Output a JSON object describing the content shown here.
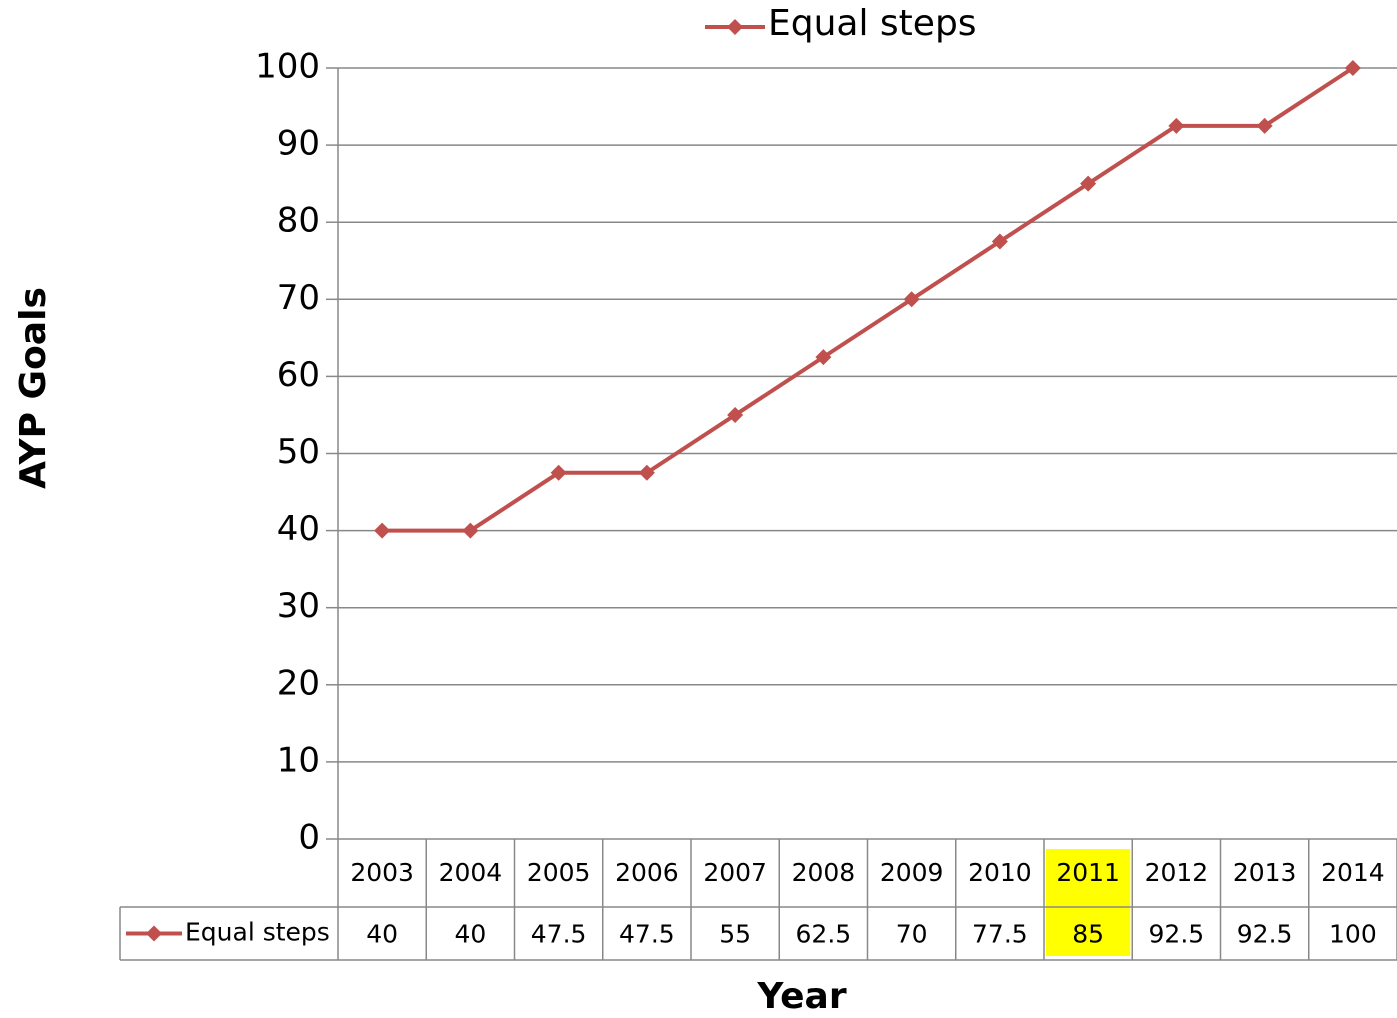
{
  "chart_data": {
    "type": "line",
    "categories": [
      "2003",
      "2004",
      "2005",
      "2006",
      "2007",
      "2008",
      "2009",
      "2010",
      "2011",
      "2012",
      "2013",
      "2014"
    ],
    "series": [
      {
        "name": "Equal steps",
        "color": "#c0504d",
        "values": [
          40,
          40,
          47.5,
          47.5,
          55,
          62.5,
          70,
          77.5,
          85,
          92.5,
          92.5,
          100
        ]
      }
    ],
    "ylabel": "AYP Goals",
    "xlabel": "Year",
    "ylim": [
      0,
      100
    ],
    "yticks": [
      0,
      10,
      20,
      30,
      40,
      50,
      60,
      70,
      80,
      90,
      100
    ],
    "grid": true,
    "legend": "top",
    "data_table": true,
    "highlight": {
      "category": "2011",
      "color": "#ffff00"
    }
  }
}
